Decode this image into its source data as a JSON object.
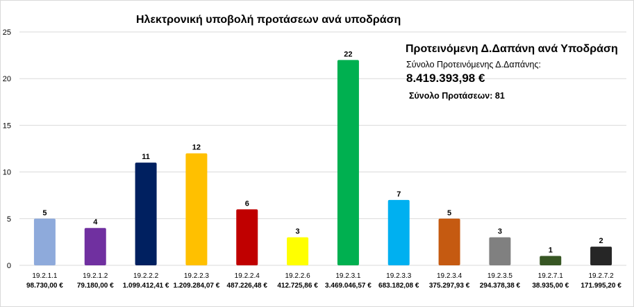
{
  "chart_data": {
    "type": "bar",
    "title": "Ηλεκτρονική υποβολή προτάσεων ανά υποδράση",
    "categories": [
      "19.2.1.1",
      "19.2.1.2",
      "19.2.2.2",
      "19.2.2.3",
      "19.2.2.4",
      "19.2.2.6",
      "19.2.3.1",
      "19.2.3.3",
      "19.2.3.4",
      "19.2.3.5",
      "19.2.7.1",
      "19.2.7.2"
    ],
    "amounts": [
      "98.730,00 €",
      "79.180,00 €",
      "1.099.412,41 €",
      "1.209.284,07 €",
      "487.226,48 €",
      "412.725,86 €",
      "3.469.046,57 €",
      "683.182,08 €",
      "375.297,93 €",
      "294.378,38 €",
      "38.935,00 €",
      "171.995,20 €"
    ],
    "values": [
      5,
      4,
      11,
      12,
      6,
      3,
      22,
      7,
      5,
      3,
      1,
      2
    ],
    "colors": [
      "#8eaadb",
      "#7030a0",
      "#002060",
      "#ffc000",
      "#c00000",
      "#ffff00",
      "#00b050",
      "#00b0f0",
      "#c55a11",
      "#808080",
      "#375623",
      "#262626"
    ],
    "ylim": [
      0,
      25
    ],
    "yticks": [
      "0",
      "5",
      "10",
      "15",
      "20",
      "25"
    ],
    "grid": true,
    "xlabel": "",
    "ylabel": ""
  },
  "info": {
    "heading": "Προτεινόμενη Δ.Δαπάνη ανά Υποδράση",
    "sub": "Σύνολο Προτεινόμενης Δ.Δαπάνης:",
    "total": "8.419.393,98 €",
    "count": "Σύνολο Προτάσεων: 81"
  }
}
